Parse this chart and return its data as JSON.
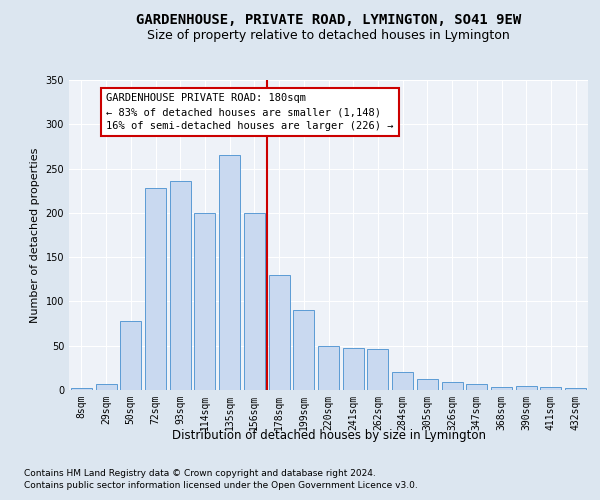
{
  "title": "GARDENHOUSE, PRIVATE ROAD, LYMINGTON, SO41 9EW",
  "subtitle": "Size of property relative to detached houses in Lymington",
  "xlabel": "Distribution of detached houses by size in Lymington",
  "ylabel": "Number of detached properties",
  "categories": [
    "8sqm",
    "29sqm",
    "50sqm",
    "72sqm",
    "93sqm",
    "114sqm",
    "135sqm",
    "156sqm",
    "178sqm",
    "199sqm",
    "220sqm",
    "241sqm",
    "262sqm",
    "284sqm",
    "305sqm",
    "326sqm",
    "347sqm",
    "368sqm",
    "390sqm",
    "411sqm",
    "432sqm"
  ],
  "values": [
    2,
    7,
    78,
    228,
    236,
    200,
    265,
    200,
    130,
    90,
    50,
    47,
    46,
    20,
    12,
    9,
    7,
    3,
    5,
    3,
    2
  ],
  "bar_color": "#c9d9f0",
  "bar_edge_color": "#5b9bd5",
  "vline_x": 7.5,
  "vline_color": "#cc0000",
  "annotation_text": "GARDENHOUSE PRIVATE ROAD: 180sqm\n← 83% of detached houses are smaller (1,148)\n16% of semi-detached houses are larger (226) →",
  "annotation_box_color": "#ffffff",
  "annotation_box_edge_color": "#cc0000",
  "ylim": [
    0,
    350
  ],
  "yticks": [
    0,
    50,
    100,
    150,
    200,
    250,
    300,
    350
  ],
  "bg_color": "#dce6f0",
  "plot_bg_color": "#eef2f8",
  "footer_line1": "Contains HM Land Registry data © Crown copyright and database right 2024.",
  "footer_line2": "Contains public sector information licensed under the Open Government Licence v3.0.",
  "title_fontsize": 10,
  "subtitle_fontsize": 9,
  "xlabel_fontsize": 8.5,
  "ylabel_fontsize": 8,
  "tick_fontsize": 7,
  "annotation_fontsize": 7.5,
  "footer_fontsize": 6.5
}
